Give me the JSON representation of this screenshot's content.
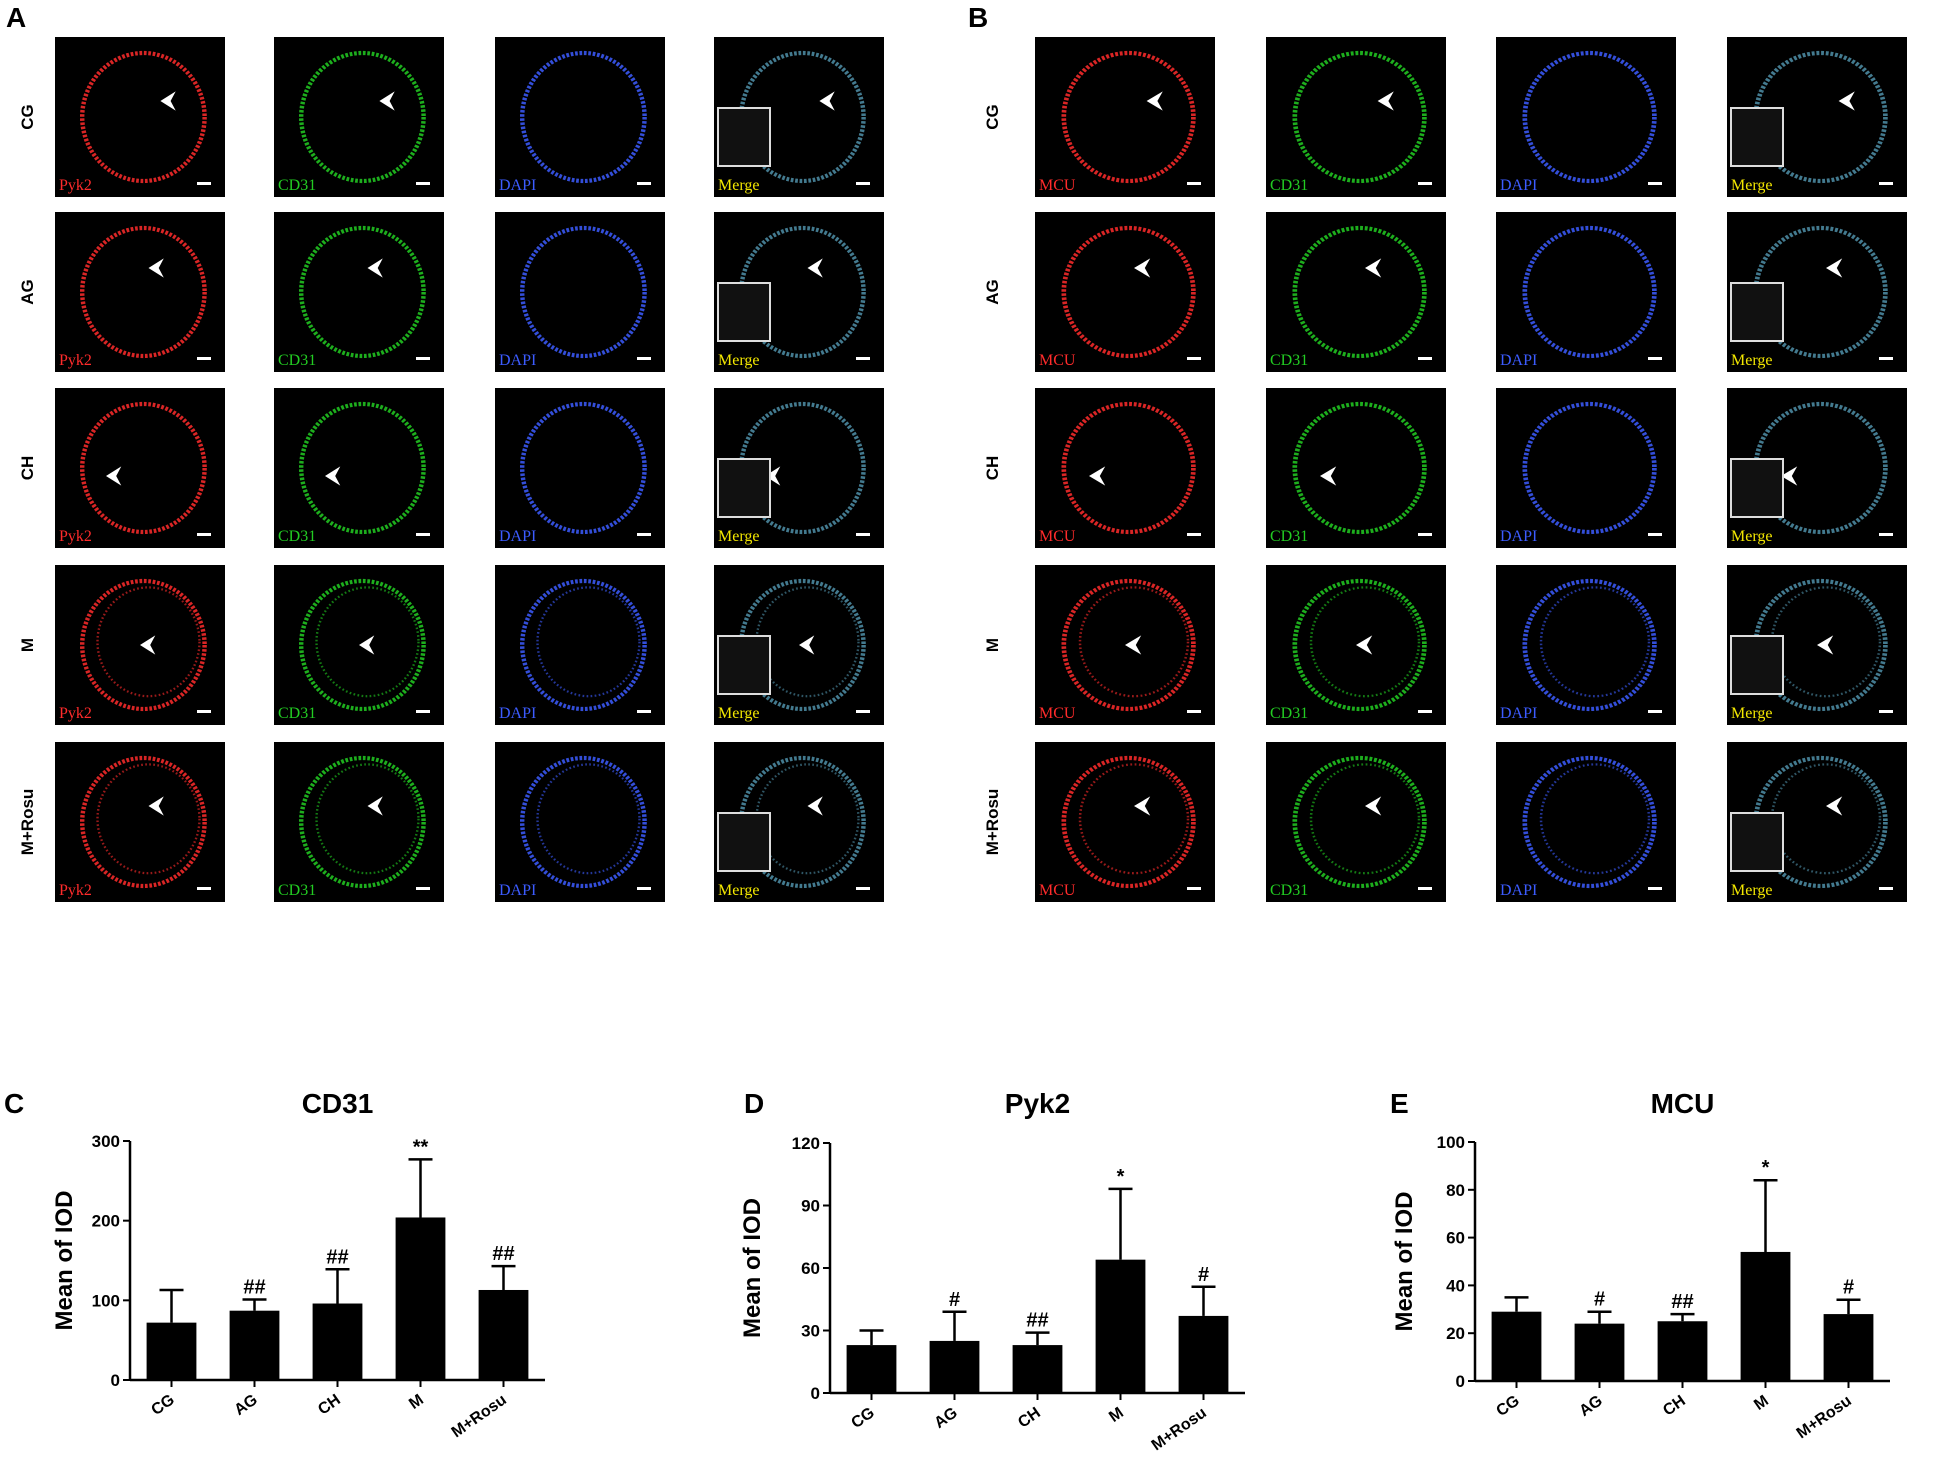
{
  "panel_letters": {
    "a": "A",
    "b": "B",
    "c": "C",
    "d": "D",
    "e": "E"
  },
  "row_labels": [
    "CG",
    "AG",
    "CH",
    "M",
    "M+Rosu"
  ],
  "panel_a_channels": [
    "Pyk2",
    "CD31",
    "DAPI",
    "Merge"
  ],
  "panel_b_channels": [
    "MCU",
    "CD31",
    "DAPI",
    "Merge"
  ],
  "colors": {
    "red": "#ff2b2b",
    "green": "#22cc22",
    "blue": "#3c5cff",
    "yellow": "#f2e600",
    "bar": "#000000"
  },
  "chart_data": [
    {
      "type": "bar",
      "title": "CD31",
      "ylabel": "Mean of IOD",
      "xlabel": "",
      "categories": [
        "CG",
        "AG",
        "CH",
        "M",
        "M+Rosu"
      ],
      "values": [
        72,
        87,
        96,
        204,
        113
      ],
      "errors": [
        41,
        14,
        43,
        73,
        30
      ],
      "significance": [
        "",
        "##",
        "##",
        "**",
        "##"
      ],
      "ylim": [
        0,
        300
      ],
      "yticks": [
        "0",
        "100",
        "200",
        "300"
      ],
      "grid": false
    },
    {
      "type": "bar",
      "title": "Pyk2",
      "ylabel": "Mean of IOD",
      "xlabel": "",
      "categories": [
        "CG",
        "AG",
        "CH",
        "M",
        "M+Rosu"
      ],
      "values": [
        23,
        25,
        23,
        64,
        37
      ],
      "errors": [
        7,
        14,
        6,
        34,
        14
      ],
      "significance": [
        "",
        "#",
        "##",
        "*",
        "#"
      ],
      "ylim": [
        0,
        120
      ],
      "yticks": [
        "0",
        "30",
        "60",
        "90",
        "120"
      ],
      "grid": false
    },
    {
      "type": "bar",
      "title": "MCU",
      "ylabel": "Mean of IOD",
      "xlabel": "",
      "categories": [
        "CG",
        "AG",
        "CH",
        "M",
        "M+Rosu"
      ],
      "values": [
        29,
        24,
        25,
        54,
        28
      ],
      "errors": [
        6,
        5,
        3,
        30,
        6
      ],
      "significance": [
        "",
        "#",
        "##",
        "*",
        "#"
      ],
      "ylim": [
        0,
        100
      ],
      "yticks": [
        "0",
        "20",
        "40",
        "60",
        "80",
        "100"
      ],
      "grid": false
    }
  ]
}
